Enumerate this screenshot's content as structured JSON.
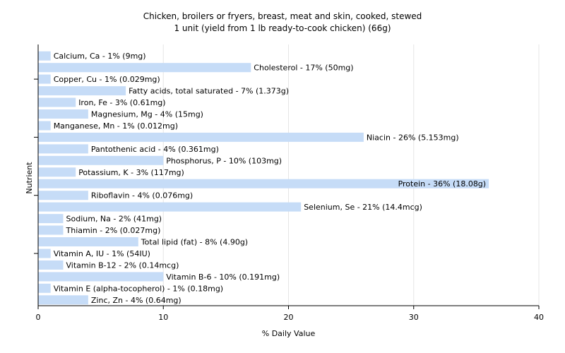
{
  "chart_data": {
    "type": "bar",
    "orientation": "horizontal",
    "title": "Chicken, broilers or fryers, breast, meat and skin, cooked, stewed",
    "subtitle": "1 unit (yield from 1 lb ready-to-cook chicken) (66g)",
    "xlabel": "% Daily Value",
    "ylabel": "Nutrient",
    "xlim": [
      0,
      40
    ],
    "xticks": [
      0,
      10,
      20,
      30,
      40
    ],
    "grid": true,
    "bar_color": "#c6dcf7",
    "grid_color": "#e5e5e5",
    "categories": [
      "Calcium, Ca - 1% (9mg)",
      "Cholesterol - 17% (50mg)",
      "Copper, Cu - 1% (0.029mg)",
      "Fatty acids, total saturated - 7% (1.373g)",
      "Iron, Fe - 3% (0.61mg)",
      "Magnesium, Mg - 4% (15mg)",
      "Manganese, Mn - 1% (0.012mg)",
      "Niacin - 26% (5.153mg)",
      "Pantothenic acid - 4% (0.361mg)",
      "Phosphorus, P - 10% (103mg)",
      "Potassium, K - 3% (117mg)",
      "Protein - 36% (18.08g)",
      "Riboflavin - 4% (0.076mg)",
      "Selenium, Se - 21% (14.4mcg)",
      "Sodium, Na - 2% (41mg)",
      "Thiamin - 2% (0.027mg)",
      "Total lipid (fat) - 8% (4.90g)",
      "Vitamin A, IU - 1% (54IU)",
      "Vitamin B-12 - 2% (0.14mcg)",
      "Vitamin B-6 - 10% (0.191mg)",
      "Vitamin E (alpha-tocopherol) - 1% (0.18mg)",
      "Zinc, Zn - 4% (0.64mg)"
    ],
    "values": [
      1,
      17,
      1,
      7,
      3,
      4,
      1,
      26,
      4,
      10,
      3,
      36,
      4,
      21,
      2,
      2,
      8,
      1,
      2,
      10,
      1,
      4
    ]
  }
}
